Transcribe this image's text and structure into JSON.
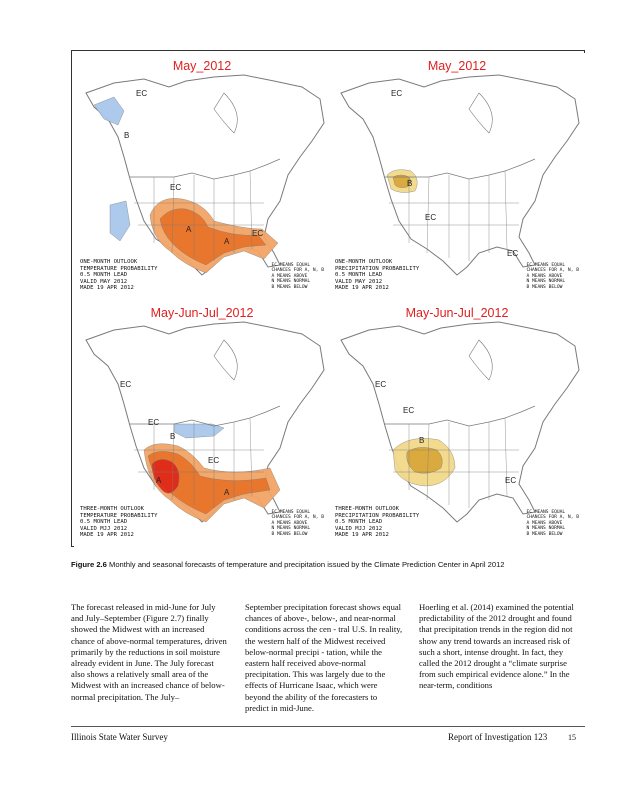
{
  "figure": {
    "panels": [
      {
        "title": "May_2012",
        "ec_labels": [
          "EC",
          "EC",
          "EC"
        ],
        "extra_labels": [
          "B",
          "A",
          "A"
        ],
        "legend_left": "ONE-MONTH OUTLOOK\nTEMPERATURE PROBABILITY\n0.5 MONTH LEAD\nVALID MAY 2012\nMADE 19 APR 2012",
        "legend_right": "EC MEANS EQUAL\nCHANCES FOR A, N, B\nA MEANS ABOVE\nN MEANS NORMAL\nB MEANS BELOW"
      },
      {
        "title": "May_2012",
        "ec_labels": [
          "EC",
          "EC",
          "EC"
        ],
        "extra_labels": [
          "B"
        ],
        "legend_left": "ONE-MONTH OUTLOOK\nPRECIPITATION PROBABILITY\n0.5 MONTH LEAD\nVALID MAY 2012\nMADE 19 APR 2012",
        "legend_right": "EC MEANS EQUAL\nCHANCES FOR A, N, B\nA MEANS ABOVE\nN MEANS NORMAL\nB MEANS BELOW"
      },
      {
        "title": "May-Jun-Jul_2012",
        "ec_labels": [
          "EC",
          "EC",
          "EC"
        ],
        "extra_labels": [
          "B",
          "A",
          "A"
        ],
        "legend_left": "THREE-MONTH OUTLOOK\nTEMPERATURE PROBABILITY\n0.5 MONTH LEAD\nVALID MJJ 2012\nMADE 19 APR 2012",
        "legend_right": "EC MEANS EQUAL\nCHANCES FOR A, N, B\nA MEANS ABOVE\nN MEANS NORMAL\nB MEANS BELOW"
      },
      {
        "title": "May-Jun-Jul_2012",
        "ec_labels": [
          "EC",
          "EC",
          "EC"
        ],
        "extra_labels": [
          "B"
        ],
        "legend_left": "THREE-MONTH OUTLOOK\nPRECIPITATION PROBABILITY\n0.5 MONTH LEAD\nVALID MJJ 2012\nMADE 19 APR 2012",
        "legend_right": "EC MEANS EQUAL\nCHANCES FOR A, N, B\nA MEANS ABOVE\nN MEANS NORMAL\nB MEANS BELOW"
      }
    ],
    "colors": {
      "land": "#ffffff",
      "line": "#7a7a7a",
      "cold": "#a9c8ec",
      "cold_dark": "#7fa9dc",
      "warm_light": "#f3a566",
      "warm": "#e8742a",
      "warm_dark": "#e02a1a",
      "dry_light": "#f2d98a",
      "dry": "#d9a83a"
    }
  },
  "caption": {
    "label": "Figure  2.6",
    "text": "Monthly and seasonal forecasts of temperature and precipitation issued by the Climate Prediction Center in April 2012"
  },
  "body": {
    "col1": "The forecast released in mid-June for July and July–September (Figure 2.7) finally showed the Midwest with an increased chance of above-normal temperatures, driven primarily by the reductions in soil moisture already evident in June. The July forecast also shows a relatively small area of the Midwest with an increased chance of below-normal precipitation. The July–",
    "col2": "September precipitation forecast shows equal chances of above-, below-, and near-normal conditions across the cen - tral U.S. In reality, the western half of the Midwest received below-normal precipi - tation, while the eastern half received above-normal precipitation. This was largely due to the effects of Hurricane Isaac, which were beyond the ability of the forecasters to predict in mid-June.",
    "col3": "Hoerling et al. (2014) examined the potential predictability of the 2012 drought and found that precipitation trends in the region did not show any trend towards an increased risk of such a short, intense drought. In fact, they called the 2012 drought a “climate surprise from such empirical evidence alone.” In the near-term, conditions"
  },
  "footer": {
    "left": "Illinois State Water Survey",
    "right": "Report of Investigation 123",
    "page": "15"
  }
}
